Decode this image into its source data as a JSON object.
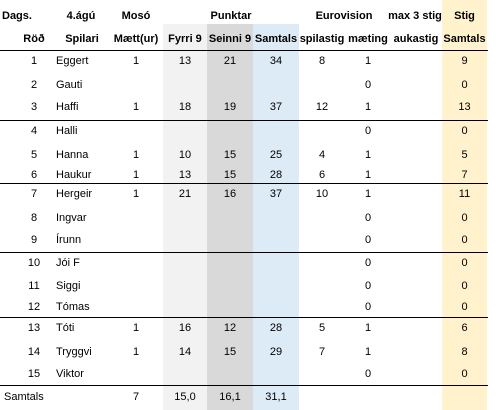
{
  "header1": [
    "Dags.",
    "4.ágú",
    "Mosó",
    "Punktar",
    "Eurovision",
    "max 3 stig",
    "Stig"
  ],
  "header2": [
    "Röð",
    "Spilari",
    "Mætt(ur)",
    "Fyrri 9",
    "Seinni 9",
    "Samtals",
    "spilastig",
    "mæting",
    "aukastig",
    "Samtals"
  ],
  "rows": [
    [
      "1",
      "Eggert",
      "1",
      "13",
      "21",
      "34",
      "8",
      "1",
      "",
      "9"
    ],
    [
      "2",
      "Gauti",
      "",
      "",
      "",
      "",
      "",
      "0",
      "",
      "0"
    ],
    [
      "3",
      "Haffi",
      "1",
      "18",
      "19",
      "37",
      "12",
      "1",
      "",
      "13"
    ],
    [
      "4",
      "Halli",
      "",
      "",
      "",
      "",
      "",
      "0",
      "",
      "0"
    ],
    [
      "5",
      "Hanna",
      "1",
      "10",
      "15",
      "25",
      "4",
      "1",
      "",
      "5"
    ],
    [
      "6",
      "Haukur",
      "1",
      "13",
      "15",
      "28",
      "6",
      "1",
      "",
      "7"
    ],
    [
      "7",
      "Hergeir",
      "1",
      "21",
      "16",
      "37",
      "10",
      "1",
      "",
      "11"
    ],
    [
      "8",
      "Ingvar",
      "",
      "",
      "",
      "",
      "",
      "0",
      "",
      "0"
    ],
    [
      "9",
      "Írunn",
      "",
      "",
      "",
      "",
      "",
      "0",
      "",
      "0"
    ],
    [
      "10",
      "Jói F",
      "",
      "",
      "",
      "",
      "",
      "0",
      "",
      "0"
    ],
    [
      "11",
      "Siggi",
      "",
      "",
      "",
      "",
      "",
      "0",
      "",
      "0"
    ],
    [
      "12",
      "Tómas",
      "",
      "",
      "",
      "",
      "",
      "0",
      "",
      "0"
    ],
    [
      "13",
      "Tóti",
      "1",
      "16",
      "12",
      "28",
      "5",
      "1",
      "",
      "6"
    ],
    [
      "14",
      "Tryggvi",
      "1",
      "14",
      "15",
      "29",
      "7",
      "1",
      "",
      "8"
    ],
    [
      "15",
      "Viktor",
      "",
      "",
      "",
      "",
      "",
      "0",
      "",
      "0"
    ]
  ],
  "totals": [
    "Samtals",
    "",
    "7",
    "15,0",
    "16,1",
    "31,1",
    "",
    "",
    "",
    ""
  ],
  "colors": {
    "fyrri_band": "#f2f2f2",
    "seinni_band": "#d9d9d9",
    "samtals_band": "#ddebf7",
    "stig_band": "#fff2cc",
    "rule": "#000000"
  }
}
